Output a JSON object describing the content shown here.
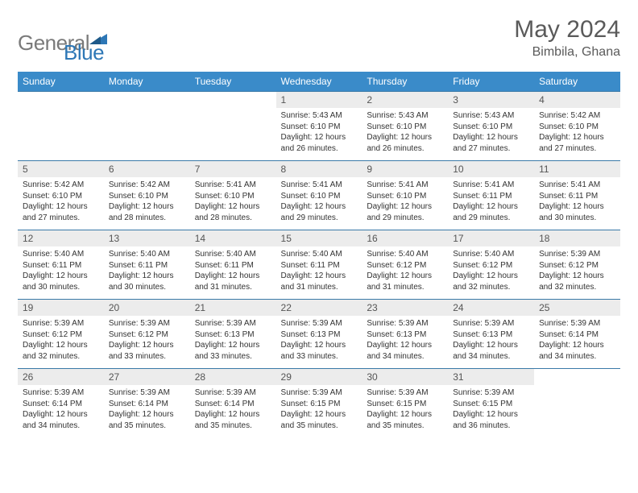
{
  "brand": {
    "part1": "General",
    "part2": "Blue"
  },
  "title": "May 2024",
  "location": "Bimbila, Ghana",
  "colors": {
    "header_bg": "#3a8bc9",
    "header_text": "#ffffff",
    "border": "#3a7aa8",
    "daynum_bg": "#ececec",
    "text": "#333333",
    "logo_gray": "#7a7a7a",
    "logo_blue": "#2d77b6",
    "title_color": "#5a5a5a"
  },
  "fonts": {
    "title_size": 30,
    "location_size": 16,
    "header_size": 12,
    "daynum_size": 12,
    "body_size": 10
  },
  "weekdays": [
    "Sunday",
    "Monday",
    "Tuesday",
    "Wednesday",
    "Thursday",
    "Friday",
    "Saturday"
  ],
  "weeks": [
    [
      null,
      null,
      null,
      {
        "n": "1",
        "sr": "5:43 AM",
        "ss": "6:10 PM",
        "dl": "12 hours and 26 minutes."
      },
      {
        "n": "2",
        "sr": "5:43 AM",
        "ss": "6:10 PM",
        "dl": "12 hours and 26 minutes."
      },
      {
        "n": "3",
        "sr": "5:43 AM",
        "ss": "6:10 PM",
        "dl": "12 hours and 27 minutes."
      },
      {
        "n": "4",
        "sr": "5:42 AM",
        "ss": "6:10 PM",
        "dl": "12 hours and 27 minutes."
      }
    ],
    [
      {
        "n": "5",
        "sr": "5:42 AM",
        "ss": "6:10 PM",
        "dl": "12 hours and 27 minutes."
      },
      {
        "n": "6",
        "sr": "5:42 AM",
        "ss": "6:10 PM",
        "dl": "12 hours and 28 minutes."
      },
      {
        "n": "7",
        "sr": "5:41 AM",
        "ss": "6:10 PM",
        "dl": "12 hours and 28 minutes."
      },
      {
        "n": "8",
        "sr": "5:41 AM",
        "ss": "6:10 PM",
        "dl": "12 hours and 29 minutes."
      },
      {
        "n": "9",
        "sr": "5:41 AM",
        "ss": "6:10 PM",
        "dl": "12 hours and 29 minutes."
      },
      {
        "n": "10",
        "sr": "5:41 AM",
        "ss": "6:11 PM",
        "dl": "12 hours and 29 minutes."
      },
      {
        "n": "11",
        "sr": "5:41 AM",
        "ss": "6:11 PM",
        "dl": "12 hours and 30 minutes."
      }
    ],
    [
      {
        "n": "12",
        "sr": "5:40 AM",
        "ss": "6:11 PM",
        "dl": "12 hours and 30 minutes."
      },
      {
        "n": "13",
        "sr": "5:40 AM",
        "ss": "6:11 PM",
        "dl": "12 hours and 30 minutes."
      },
      {
        "n": "14",
        "sr": "5:40 AM",
        "ss": "6:11 PM",
        "dl": "12 hours and 31 minutes."
      },
      {
        "n": "15",
        "sr": "5:40 AM",
        "ss": "6:11 PM",
        "dl": "12 hours and 31 minutes."
      },
      {
        "n": "16",
        "sr": "5:40 AM",
        "ss": "6:12 PM",
        "dl": "12 hours and 31 minutes."
      },
      {
        "n": "17",
        "sr": "5:40 AM",
        "ss": "6:12 PM",
        "dl": "12 hours and 32 minutes."
      },
      {
        "n": "18",
        "sr": "5:39 AM",
        "ss": "6:12 PM",
        "dl": "12 hours and 32 minutes."
      }
    ],
    [
      {
        "n": "19",
        "sr": "5:39 AM",
        "ss": "6:12 PM",
        "dl": "12 hours and 32 minutes."
      },
      {
        "n": "20",
        "sr": "5:39 AM",
        "ss": "6:12 PM",
        "dl": "12 hours and 33 minutes."
      },
      {
        "n": "21",
        "sr": "5:39 AM",
        "ss": "6:13 PM",
        "dl": "12 hours and 33 minutes."
      },
      {
        "n": "22",
        "sr": "5:39 AM",
        "ss": "6:13 PM",
        "dl": "12 hours and 33 minutes."
      },
      {
        "n": "23",
        "sr": "5:39 AM",
        "ss": "6:13 PM",
        "dl": "12 hours and 34 minutes."
      },
      {
        "n": "24",
        "sr": "5:39 AM",
        "ss": "6:13 PM",
        "dl": "12 hours and 34 minutes."
      },
      {
        "n": "25",
        "sr": "5:39 AM",
        "ss": "6:14 PM",
        "dl": "12 hours and 34 minutes."
      }
    ],
    [
      {
        "n": "26",
        "sr": "5:39 AM",
        "ss": "6:14 PM",
        "dl": "12 hours and 34 minutes."
      },
      {
        "n": "27",
        "sr": "5:39 AM",
        "ss": "6:14 PM",
        "dl": "12 hours and 35 minutes."
      },
      {
        "n": "28",
        "sr": "5:39 AM",
        "ss": "6:14 PM",
        "dl": "12 hours and 35 minutes."
      },
      {
        "n": "29",
        "sr": "5:39 AM",
        "ss": "6:15 PM",
        "dl": "12 hours and 35 minutes."
      },
      {
        "n": "30",
        "sr": "5:39 AM",
        "ss": "6:15 PM",
        "dl": "12 hours and 35 minutes."
      },
      {
        "n": "31",
        "sr": "5:39 AM",
        "ss": "6:15 PM",
        "dl": "12 hours and 36 minutes."
      },
      null
    ]
  ],
  "labels": {
    "sunrise": "Sunrise:",
    "sunset": "Sunset:",
    "daylight": "Daylight:"
  }
}
